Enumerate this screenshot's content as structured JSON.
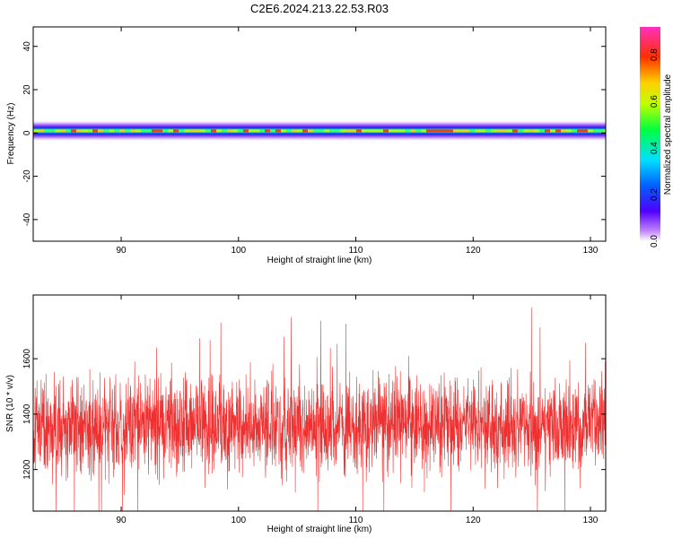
{
  "title": "C2E6.2024.213.22.53.R03",
  "chart_data": [
    {
      "type": "heatmap",
      "xlabel": "Height of straight line (km)",
      "ylabel": "Frequency (Hz)",
      "xlim": [
        82.5,
        131.3
      ],
      "ylim": [
        -50,
        49
      ],
      "xticks": [
        90,
        100,
        110,
        120,
        130
      ],
      "xtick_labels": [
        "90",
        "100",
        "110",
        "120",
        "130"
      ],
      "yticks": [
        -40,
        -20,
        0,
        20,
        40
      ],
      "ytick_labels": [
        "-40",
        "-20",
        "0",
        "20",
        "40"
      ],
      "band": {
        "center_hz": 1,
        "half_width_hz": 3.5,
        "peak_amplitude": 0.9
      },
      "grid": false
    },
    {
      "type": "line",
      "xlabel": "Height of straight line (km)",
      "ylabel": "SNR (10 * v/v)",
      "xlim": [
        82.5,
        131.3
      ],
      "ylim": [
        1050,
        1830
      ],
      "xticks": [
        90,
        100,
        110,
        120,
        130
      ],
      "xtick_labels": [
        "90",
        "100",
        "110",
        "120",
        "130"
      ],
      "yticks": [
        1200,
        1400,
        1600
      ],
      "ytick_labels": [
        "1200",
        "1400",
        "1600"
      ],
      "series": [
        {
          "mean": 1360,
          "typical_range": [
            1230,
            1520
          ],
          "min": 1050,
          "max": 1830,
          "color": "#f03030"
        }
      ],
      "grid": false
    }
  ],
  "colorbar": {
    "label": "Normalized spectral amplitude",
    "range": [
      0,
      0.92
    ],
    "ticks": [
      0.0,
      0.2,
      0.4,
      0.6,
      0.8
    ],
    "tick_labels": [
      "0.0",
      "0.2",
      "0.4",
      "0.6",
      "0.8"
    ]
  }
}
